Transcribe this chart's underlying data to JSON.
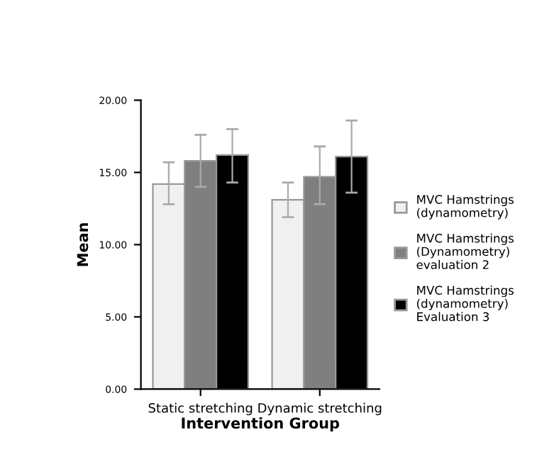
{
  "chart_data": {
    "type": "bar",
    "xlabel": "Intervention Group",
    "ylabel": "Mean",
    "categories": [
      "Static stretching",
      "Dynamic stretching"
    ],
    "series": [
      {
        "name": "MVC Hamstrings\n(dynamometry)",
        "color": "#f0f0f0",
        "values": [
          14.2,
          13.1
        ],
        "errors": [
          [
            12.8,
            15.7
          ],
          [
            11.9,
            14.3
          ]
        ]
      },
      {
        "name": "MVC Hamstrings\n(Dynamometry)\nevaluation 2",
        "color": "#7f7f7f",
        "values": [
          15.8,
          14.7
        ],
        "errors": [
          [
            14.0,
            17.6
          ],
          [
            12.8,
            16.8
          ]
        ]
      },
      {
        "name": "MVC Hamstrings\n(dynamometry)\nEvaluation 3",
        "color": "#000000",
        "values": [
          16.2,
          16.1
        ],
        "errors": [
          [
            14.3,
            18.0
          ],
          [
            13.6,
            18.6
          ]
        ]
      }
    ],
    "ylim": [
      0,
      20
    ],
    "yticks": [
      {
        "value": 0,
        "label": "0.00"
      },
      {
        "value": 5,
        "label": "5.00"
      },
      {
        "value": 10,
        "label": "10.00"
      },
      {
        "value": 15,
        "label": "15.00"
      },
      {
        "value": 20,
        "label": "20.00"
      }
    ],
    "grid": false,
    "legend": "right"
  }
}
